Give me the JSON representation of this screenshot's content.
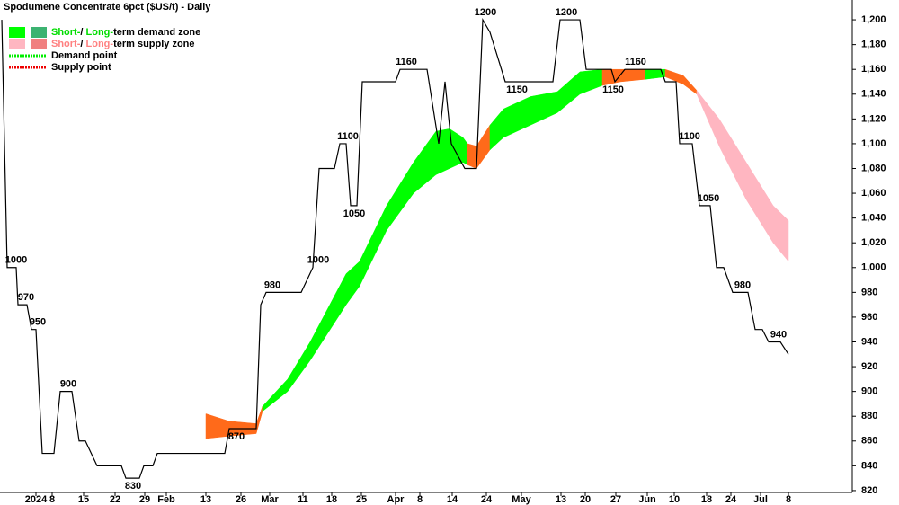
{
  "chart_data": {
    "type": "line",
    "title": "Spodumene Concentrate 6pct ($US/t) - Daily",
    "legend": [
      {
        "parts": [
          "Short-",
          "/ ",
          "Long-",
          "term demand zone"
        ],
        "colors": [
          "#00ff00",
          "#3cb371"
        ],
        "text_color": "#00dd00"
      },
      {
        "parts": [
          "Short-",
          "/ ",
          "Long-",
          "term supply zone"
        ],
        "colors": [
          "#ffb6c1",
          "#f08080"
        ],
        "text_color": "#ff8080"
      },
      {
        "parts": [
          "Demand point"
        ],
        "colors": [
          "#00ee00"
        ],
        "dotted": true
      },
      {
        "parts": [
          "Supply point"
        ],
        "colors": [
          "#ee0000"
        ],
        "dotted": true
      }
    ],
    "xlim": [
      0,
      189.6
    ],
    "ylim": [
      818.5,
      1216
    ],
    "yticks": [
      820,
      840,
      860,
      880,
      900,
      920,
      940,
      960,
      980,
      {
        "value": 1000,
        "label": "1,000"
      },
      {
        "value": 1020,
        "label": "1,020"
      },
      {
        "value": 1040,
        "label": "1,040"
      },
      {
        "value": 1060,
        "label": "1,060"
      },
      {
        "value": 1080,
        "label": "1,080"
      },
      {
        "value": 1100,
        "label": "1,100"
      },
      {
        "value": 1120,
        "label": "1,120"
      },
      {
        "value": 1140,
        "label": "1,140"
      },
      {
        "value": 1160,
        "label": "1,160"
      },
      {
        "value": 1180,
        "label": "1,180"
      },
      {
        "value": 1200,
        "label": "1,200"
      }
    ],
    "xticks": [
      {
        "value": 8,
        "label": "2024"
      },
      {
        "value": 11.6,
        "label": "8"
      },
      {
        "value": 18.6,
        "label": "15"
      },
      {
        "value": 25.6,
        "label": "22"
      },
      {
        "value": 32.2,
        "label": "29"
      },
      {
        "value": 37,
        "label": "Feb"
      },
      {
        "value": 45.8,
        "label": "13"
      },
      {
        "value": 53.6,
        "label": "26"
      },
      {
        "value": 60,
        "label": "Mar"
      },
      {
        "value": 67.4,
        "label": "11"
      },
      {
        "value": 73.8,
        "label": "18"
      },
      {
        "value": 80.4,
        "label": "25"
      },
      {
        "value": 88,
        "label": "Apr"
      },
      {
        "value": 93.4,
        "label": "8"
      },
      {
        "value": 100.6,
        "label": "14"
      },
      {
        "value": 108.2,
        "label": "24"
      },
      {
        "value": 116,
        "label": "May"
      },
      {
        "value": 124.8,
        "label": "13"
      },
      {
        "value": 130.2,
        "label": "20"
      },
      {
        "value": 137,
        "label": "27"
      },
      {
        "value": 144,
        "label": "Jun"
      },
      {
        "value": 150,
        "label": "10"
      },
      {
        "value": 157.2,
        "label": "18"
      },
      {
        "value": 162.6,
        "label": "24"
      },
      {
        "value": 169.2,
        "label": "Jul"
      },
      {
        "value": 175.4,
        "label": "8"
      }
    ],
    "series": [
      {
        "color": "#000000",
        "x": [
          0.4,
          1.6,
          3.6,
          4,
          6,
          7,
          8,
          9.4,
          12,
          13.4,
          16,
          17.6,
          19,
          21.6,
          27,
          28,
          31,
          32,
          34,
          35,
          50,
          51,
          57,
          58,
          59.2,
          67,
          69.6,
          71,
          74.4,
          75.6,
          77,
          78,
          79.4,
          80.6,
          88,
          89,
          95,
          97.6,
          99,
          100.4,
          103.4,
          106,
          107.4,
          109,
          112.4,
          123,
          124.6,
          129,
          130.4,
          136,
          136.8,
          139,
          147,
          148,
          150.4,
          151.2,
          154,
          155.6,
          158,
          159.4,
          161,
          163,
          166.4,
          168,
          169.6,
          171,
          173.6,
          175.4
        ],
        "values": [
          1200,
          1000,
          1000,
          970,
          970,
          950,
          950,
          850,
          850,
          900,
          900,
          860,
          860,
          840,
          840,
          830,
          830,
          840,
          840,
          850,
          850,
          870,
          870,
          970,
          980,
          980,
          1000,
          1080,
          1080,
          1100,
          1100,
          1050,
          1050,
          1150,
          1150,
          1160,
          1160,
          1100,
          1150,
          1100,
          1080,
          1080,
          1200,
          1190,
          1150,
          1150,
          1200,
          1200,
          1160,
          1160,
          1150,
          1160,
          1160,
          1150,
          1150,
          1100,
          1100,
          1050,
          1050,
          1000,
          1000,
          980,
          980,
          950,
          950,
          940,
          940,
          930
        ]
      }
    ],
    "zones": [
      {
        "color": "#ff6a1a",
        "x": [
          45.8,
          51,
          57,
          58.4
        ],
        "upper": [
          882,
          876,
          874,
          888
        ],
        "lower": [
          862,
          864,
          866,
          884
        ]
      },
      {
        "color": "#00ff00",
        "x": [
          58.4,
          64,
          69,
          77,
          80,
          86,
          92,
          97,
          100,
          103,
          104
        ],
        "upper": [
          888,
          910,
          940,
          995,
          1005,
          1050,
          1085,
          1110,
          1112,
          1105,
          1100
        ],
        "lower": [
          884,
          900,
          925,
          970,
          985,
          1030,
          1060,
          1075,
          1080,
          1085,
          1083
        ]
      },
      {
        "color": "#ff6a1a",
        "x": [
          104,
          106,
          109
        ],
        "upper": [
          1100,
          1098,
          1115
        ],
        "lower": [
          1083,
          1080,
          1095
        ]
      },
      {
        "color": "#00ff00",
        "x": [
          109,
          112,
          118,
          124,
          129,
          134
        ],
        "upper": [
          1115,
          1128,
          1138,
          1142,
          1158,
          1160
        ],
        "lower": [
          1095,
          1105,
          1115,
          1125,
          1140,
          1147
        ]
      },
      {
        "color": "#ff6a1a",
        "x": [
          134,
          138,
          143.6
        ],
        "upper": [
          1160,
          1160,
          1160
        ],
        "lower": [
          1147,
          1150,
          1152
        ]
      },
      {
        "color": "#00ff00",
        "x": [
          143.6,
          148
        ],
        "upper": [
          1160,
          1160
        ],
        "lower": [
          1152,
          1154
        ]
      },
      {
        "color": "#ff6a1a",
        "x": [
          148,
          152,
          155
        ],
        "upper": [
          1160,
          1155,
          1143
        ],
        "lower": [
          1154,
          1148,
          1140
        ]
      },
      {
        "color": "#ffb6c1",
        "x": [
          155,
          160,
          166,
          172,
          175.4
        ],
        "upper": [
          1143,
          1120,
          1085,
          1050,
          1038
        ],
        "lower": [
          1140,
          1098,
          1055,
          1020,
          1005
        ]
      }
    ],
    "point_labels": [
      {
        "x": 3.6,
        "value": 1000
      },
      {
        "x": 5.8,
        "value": 970
      },
      {
        "x": 8.4,
        "value": 950
      },
      {
        "x": 15.2,
        "value": 900
      },
      {
        "x": 29.6,
        "value": 830,
        "pos": "below"
      },
      {
        "x": 52.6,
        "value": 870,
        "pos": "below"
      },
      {
        "x": 60.6,
        "value": 980
      },
      {
        "x": 70.8,
        "value": 1000
      },
      {
        "x": 77.4,
        "value": 1100
      },
      {
        "x": 78.8,
        "value": 1050,
        "pos": "below"
      },
      {
        "x": 90.4,
        "value": 1160
      },
      {
        "x": 108,
        "value": 1200
      },
      {
        "x": 115,
        "value": 1150,
        "pos": "below"
      },
      {
        "x": 126,
        "value": 1200
      },
      {
        "x": 136.4,
        "value": 1150,
        "pos": "below"
      },
      {
        "x": 141.4,
        "value": 1160
      },
      {
        "x": 153.4,
        "value": 1100
      },
      {
        "x": 157.6,
        "value": 1050
      },
      {
        "x": 165.2,
        "value": 980
      },
      {
        "x": 173.2,
        "value": 940
      }
    ]
  }
}
